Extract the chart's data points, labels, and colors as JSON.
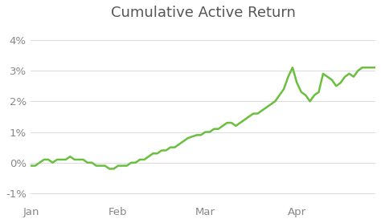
{
  "title": "Cumulative Active Return",
  "title_fontsize": 13,
  "title_color": "#555555",
  "line_color": "#6abf3f",
  "line_width": 1.8,
  "background_color": "#ffffff",
  "axes_background": "#ffffff",
  "ylim": [
    -0.013,
    0.045
  ],
  "yticks": [
    -0.01,
    0.0,
    0.01,
    0.02,
    0.03,
    0.04
  ],
  "ytick_labels": [
    "-1%",
    "0%",
    "1%",
    "2%",
    "3%",
    "4%"
  ],
  "xtick_labels": [
    "Jan",
    "Feb",
    "Mar",
    "Apr"
  ],
  "xtick_positions": [
    0,
    20,
    40,
    61
  ],
  "tick_color": "#888888",
  "grid_color": "#dddddd",
  "x_data": [
    0,
    1,
    2,
    3,
    4,
    5,
    6,
    7,
    8,
    9,
    10,
    11,
    12,
    13,
    14,
    15,
    16,
    17,
    18,
    19,
    20,
    21,
    22,
    23,
    24,
    25,
    26,
    27,
    28,
    29,
    30,
    31,
    32,
    33,
    34,
    35,
    36,
    37,
    38,
    39,
    40,
    41,
    42,
    43,
    44,
    45,
    46,
    47,
    48,
    49,
    50,
    51,
    52,
    53,
    54,
    55,
    56,
    57,
    58,
    59,
    60,
    61,
    62,
    63,
    64,
    65,
    66,
    67,
    68,
    69,
    70,
    71,
    72,
    73,
    74,
    75,
    76,
    77,
    78,
    79
  ],
  "y_data": [
    -0.001,
    -0.001,
    0.0,
    0.001,
    0.001,
    0.0,
    0.001,
    0.001,
    0.001,
    0.002,
    0.001,
    0.001,
    0.001,
    0.0,
    0.0,
    -0.001,
    -0.001,
    -0.001,
    -0.002,
    -0.002,
    -0.001,
    -0.001,
    -0.001,
    0.0,
    0.0,
    0.001,
    0.001,
    0.002,
    0.003,
    0.003,
    0.004,
    0.004,
    0.005,
    0.005,
    0.006,
    0.007,
    0.008,
    0.0085,
    0.009,
    0.009,
    0.01,
    0.01,
    0.011,
    0.011,
    0.012,
    0.013,
    0.013,
    0.012,
    0.013,
    0.014,
    0.015,
    0.016,
    0.016,
    0.017,
    0.018,
    0.019,
    0.02,
    0.022,
    0.024,
    0.028,
    0.031,
    0.026,
    0.023,
    0.022,
    0.02,
    0.022,
    0.023,
    0.029,
    0.028,
    0.027,
    0.025,
    0.026,
    0.028,
    0.029,
    0.028,
    0.03,
    0.031,
    0.031,
    0.031,
    0.031
  ]
}
